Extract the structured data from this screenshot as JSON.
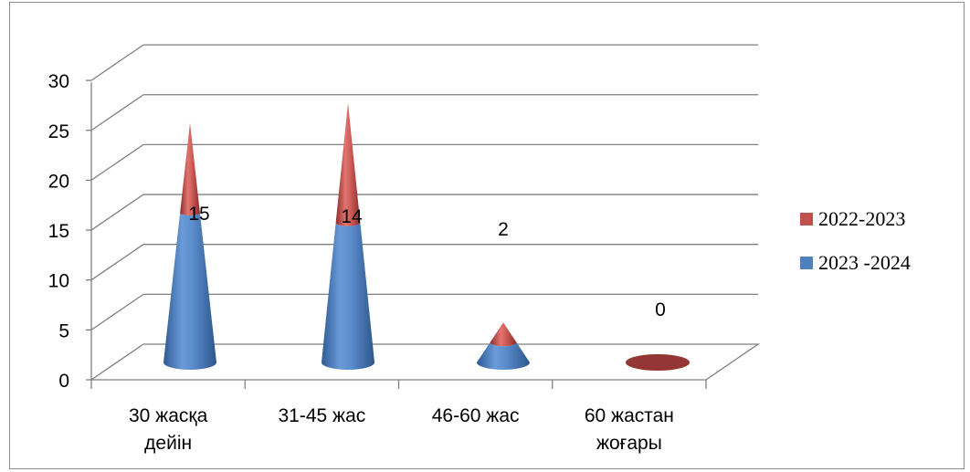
{
  "chart_data": {
    "type": "bar",
    "shape": "cone-3d",
    "categories": [
      "30 жасқа|дейін",
      "31-45 жас",
      "46-60 жас",
      "60 жастан|жоғары"
    ],
    "series": [
      {
        "name": "2023 -2024",
        "values": [
          15,
          14,
          2,
          0
        ],
        "color": "#4f81bd"
      },
      {
        "name": "2022-2023",
        "values": [
          9,
          12,
          2,
          0
        ],
        "color": "#c0504d"
      }
    ],
    "data_labels": [
      "15",
      "14",
      "2",
      "0"
    ],
    "yticks": [
      "0",
      "5",
      "10",
      "15",
      "20",
      "25",
      "30"
    ],
    "ylim": [
      0,
      30
    ],
    "grid": true,
    "legend": "right",
    "legend_entries": [
      {
        "label": "2022-2023",
        "color": "#c0504d"
      },
      {
        "label": "2023 -2024",
        "color": "#4f81bd"
      }
    ]
  }
}
